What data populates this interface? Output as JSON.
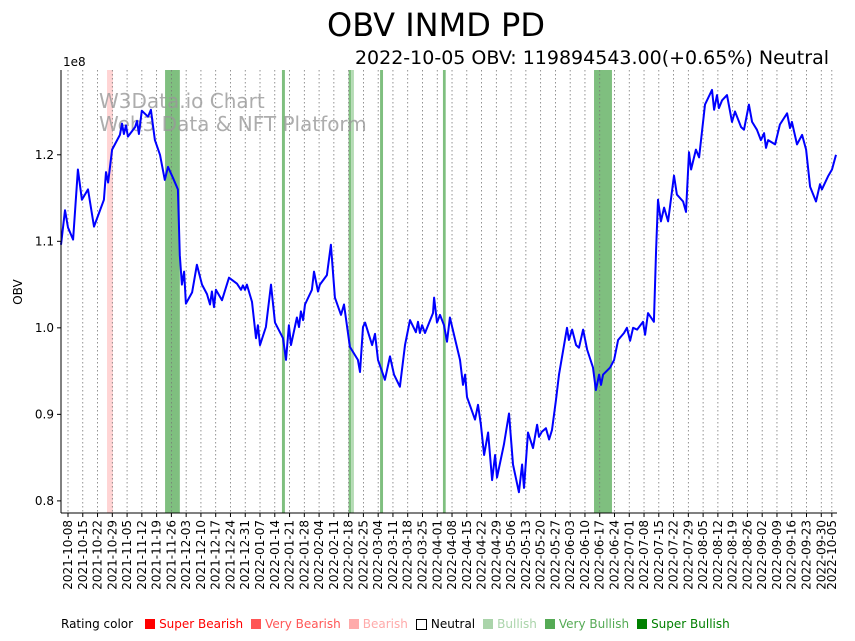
{
  "chart_data": {
    "type": "line",
    "title": "OBV INMD PD",
    "subtitle": "2022-10-05 OBV: 119894543.00(+0.65%) Neutral",
    "ylabel": "OBV",
    "xlabel": "",
    "y_scale_label": "1e8",
    "ylim": [
      0.786,
      1.298
    ],
    "y_ticks": [
      "0.8",
      "0.9",
      "1.0",
      "1.1",
      "1.2"
    ],
    "y_tick_values": [
      0.8,
      0.9,
      1.0,
      1.1,
      1.2
    ],
    "x_start_date": "2021-10-08",
    "x_ticks": [
      "2021-10-08",
      "2021-10-15",
      "2021-10-22",
      "2021-10-29",
      "2021-11-05",
      "2021-11-12",
      "2021-11-19",
      "2021-11-26",
      "2021-12-03",
      "2021-12-10",
      "2021-12-17",
      "2021-12-24",
      "2021-12-31",
      "2022-01-07",
      "2022-01-14",
      "2022-01-21",
      "2022-01-28",
      "2022-02-04",
      "2022-02-11",
      "2022-02-18",
      "2022-02-25",
      "2022-03-04",
      "2022-03-11",
      "2022-03-18",
      "2022-03-25",
      "2022-04-01",
      "2022-04-08",
      "2022-04-15",
      "2022-04-22",
      "2022-04-29",
      "2022-05-06",
      "2022-05-13",
      "2022-05-20",
      "2022-05-27",
      "2022-06-03",
      "2022-06-10",
      "2022-06-17",
      "2022-06-24",
      "2022-07-01",
      "2022-07-08",
      "2022-07-15",
      "2022-07-22",
      "2022-07-29",
      "2022-08-05",
      "2022-08-12",
      "2022-08-19",
      "2022-08-26",
      "2022-09-02",
      "2022-09-09",
      "2022-09-16",
      "2022-09-23",
      "2022-09-30",
      "2022-10-05"
    ],
    "x_tick_days": [
      0,
      7,
      14,
      21,
      28,
      35,
      42,
      49,
      56,
      63,
      70,
      77,
      84,
      91,
      98,
      105,
      112,
      119,
      126,
      133,
      140,
      147,
      154,
      161,
      168,
      175,
      182,
      189,
      196,
      203,
      210,
      217,
      224,
      231,
      238,
      245,
      252,
      259,
      266,
      273,
      280,
      287,
      294,
      301,
      308,
      315,
      322,
      329,
      336,
      343,
      350,
      357,
      362
    ],
    "grid": "vertical dotted",
    "series": [
      {
        "name": "OBV",
        "color": "#0000ff",
        "points": [
          [
            -3.3,
            1.096
          ],
          [
            -1.4,
            1.136
          ],
          [
            0,
            1.116
          ],
          [
            2.4,
            1.102
          ],
          [
            4.7,
            1.183
          ],
          [
            6.6,
            1.148
          ],
          [
            9.5,
            1.16
          ],
          [
            12.3,
            1.117
          ],
          [
            17,
            1.148
          ],
          [
            18,
            1.18
          ],
          [
            19,
            1.168
          ],
          [
            20.9,
            1.206
          ],
          [
            24.6,
            1.223
          ],
          [
            25.6,
            1.236
          ],
          [
            26.5,
            1.224
          ],
          [
            27.5,
            1.234
          ],
          [
            28.4,
            1.221
          ],
          [
            31.8,
            1.232
          ],
          [
            32.7,
            1.239
          ],
          [
            33.6,
            1.224
          ],
          [
            35,
            1.251
          ],
          [
            37.9,
            1.244
          ],
          [
            39.3,
            1.252
          ],
          [
            41.2,
            1.217
          ],
          [
            43.6,
            1.2
          ],
          [
            45.9,
            1.171
          ],
          [
            47.4,
            1.186
          ],
          [
            49.8,
            1.173
          ],
          [
            52.1,
            1.16
          ],
          [
            53,
            1.084
          ],
          [
            54,
            1.05
          ],
          [
            55,
            1.065
          ],
          [
            55.9,
            1.028
          ],
          [
            58.8,
            1.041
          ],
          [
            61.1,
            1.073
          ],
          [
            63.5,
            1.05
          ],
          [
            65.9,
            1.039
          ],
          [
            67.3,
            1.027
          ],
          [
            68.2,
            1.042
          ],
          [
            69.2,
            1.024
          ],
          [
            70.1,
            1.044
          ],
          [
            73,
            1.032
          ],
          [
            76.3,
            1.058
          ],
          [
            80.1,
            1.051
          ],
          [
            82,
            1.044
          ],
          [
            82.9,
            1.049
          ],
          [
            83.9,
            1.044
          ],
          [
            84.8,
            1.05
          ],
          [
            87.2,
            1.03
          ],
          [
            89.1,
            0.988
          ],
          [
            90,
            1.003
          ],
          [
            91,
            0.98
          ],
          [
            93.8,
            1.001
          ],
          [
            96.2,
            1.05
          ],
          [
            98.1,
            1.006
          ],
          [
            101.9,
            0.988
          ],
          [
            103.3,
            0.963
          ],
          [
            104.7,
            1.003
          ],
          [
            105.7,
            0.98
          ],
          [
            108.5,
            1.012
          ],
          [
            109.5,
            1.001
          ],
          [
            110.4,
            1.019
          ],
          [
            111.4,
            1.009
          ],
          [
            112.3,
            1.027
          ],
          [
            115.6,
            1.044
          ],
          [
            116.6,
            1.065
          ],
          [
            118.5,
            1.042
          ],
          [
            119.4,
            1.05
          ],
          [
            122.7,
            1.061
          ],
          [
            124.6,
            1.096
          ],
          [
            126.5,
            1.035
          ],
          [
            129.4,
            1.015
          ],
          [
            130.8,
            1.027
          ],
          [
            133.6,
            0.978
          ],
          [
            137.4,
            0.963
          ],
          [
            138.4,
            0.949
          ],
          [
            139.8,
            1.001
          ],
          [
            140.8,
            1.006
          ],
          [
            144.1,
            0.98
          ],
          [
            145.5,
            0.993
          ],
          [
            146.9,
            0.963
          ],
          [
            150.2,
            0.94
          ],
          [
            152.6,
            0.967
          ],
          [
            154.5,
            0.946
          ],
          [
            157.3,
            0.932
          ],
          [
            159.7,
            0.98
          ],
          [
            162.1,
            1.009
          ],
          [
            164.9,
            0.995
          ],
          [
            165.9,
            1.007
          ],
          [
            166.8,
            0.994
          ],
          [
            167.8,
            1.003
          ],
          [
            169.2,
            0.994
          ],
          [
            173,
            1.017
          ],
          [
            173.5,
            1.035
          ],
          [
            174.9,
            1.006
          ],
          [
            176.3,
            1.015
          ],
          [
            178.2,
            1.003
          ],
          [
            179.6,
            0.984
          ],
          [
            181,
            1.012
          ],
          [
            185.8,
            0.963
          ],
          [
            187.2,
            0.934
          ],
          [
            188.2,
            0.946
          ],
          [
            189.1,
            0.92
          ],
          [
            192.9,
            0.894
          ],
          [
            194.3,
            0.911
          ],
          [
            195.7,
            0.888
          ],
          [
            197.2,
            0.853
          ],
          [
            199.1,
            0.879
          ],
          [
            201,
            0.824
          ],
          [
            202.4,
            0.853
          ],
          [
            203.3,
            0.827
          ],
          [
            206.6,
            0.865
          ],
          [
            209,
            0.901
          ],
          [
            210.9,
            0.842
          ],
          [
            213.7,
            0.81
          ],
          [
            215.2,
            0.842
          ],
          [
            216.1,
            0.815
          ],
          [
            218,
            0.879
          ],
          [
            220.4,
            0.861
          ],
          [
            222.3,
            0.888
          ],
          [
            223.2,
            0.874
          ],
          [
            224.6,
            0.88
          ],
          [
            226.5,
            0.884
          ],
          [
            228,
            0.871
          ],
          [
            229.4,
            0.882
          ],
          [
            231.3,
            0.917
          ],
          [
            232.7,
            0.946
          ],
          [
            236.5,
            1.0
          ],
          [
            237.4,
            0.986
          ],
          [
            238.9,
            0.998
          ],
          [
            240.8,
            0.98
          ],
          [
            242.2,
            0.977
          ],
          [
            244.1,
            0.998
          ],
          [
            246,
            0.975
          ],
          [
            248.8,
            0.954
          ],
          [
            250.2,
            0.928
          ],
          [
            251.7,
            0.946
          ],
          [
            252.6,
            0.934
          ],
          [
            253.6,
            0.946
          ],
          [
            256.9,
            0.954
          ],
          [
            258.8,
            0.963
          ],
          [
            260.7,
            0.986
          ],
          [
            263.5,
            0.994
          ],
          [
            264.9,
            1.0
          ],
          [
            266.4,
            0.985
          ],
          [
            267.8,
            1.0
          ],
          [
            269.7,
            0.998
          ],
          [
            272.5,
            1.007
          ],
          [
            273.5,
            0.992
          ],
          [
            274.9,
            1.017
          ],
          [
            277.7,
            1.007
          ],
          [
            278.7,
            1.09
          ],
          [
            279.6,
            1.148
          ],
          [
            281,
            1.123
          ],
          [
            282.5,
            1.139
          ],
          [
            284.4,
            1.123
          ],
          [
            287.2,
            1.176
          ],
          [
            288.6,
            1.154
          ],
          [
            291.5,
            1.146
          ],
          [
            292.9,
            1.134
          ],
          [
            294.3,
            1.203
          ],
          [
            295.3,
            1.183
          ],
          [
            297.6,
            1.206
          ],
          [
            299.1,
            1.197
          ],
          [
            301.9,
            1.258
          ],
          [
            305.2,
            1.275
          ],
          [
            306.2,
            1.252
          ],
          [
            307.6,
            1.269
          ],
          [
            308.5,
            1.254
          ],
          [
            310,
            1.263
          ],
          [
            312.3,
            1.269
          ],
          [
            314.7,
            1.238
          ],
          [
            316.1,
            1.25
          ],
          [
            319,
            1.232
          ],
          [
            320.4,
            1.229
          ],
          [
            322.7,
            1.258
          ],
          [
            324.2,
            1.238
          ],
          [
            326.5,
            1.229
          ],
          [
            328.4,
            1.217
          ],
          [
            329.9,
            1.225
          ],
          [
            330.8,
            1.208
          ],
          [
            331.8,
            1.217
          ],
          [
            335.1,
            1.212
          ],
          [
            337.4,
            1.235
          ],
          [
            340.8,
            1.248
          ],
          [
            342.2,
            1.231
          ],
          [
            343.1,
            1.238
          ],
          [
            345.5,
            1.212
          ],
          [
            347.9,
            1.223
          ],
          [
            349.8,
            1.206
          ],
          [
            351.7,
            1.163
          ],
          [
            354.5,
            1.146
          ],
          [
            356.4,
            1.166
          ],
          [
            357.3,
            1.16
          ],
          [
            360.2,
            1.175
          ],
          [
            362.1,
            1.183
          ],
          [
            364,
            1.2
          ]
        ]
      }
    ],
    "rating_bands": [
      {
        "rating": "Bearish",
        "from_day": 18.5,
        "to_day": 21.3
      },
      {
        "rating": "Very Bullish",
        "from_day": 46,
        "to_day": 53
      },
      {
        "rating": "Very Bullish",
        "from_day": 101.4,
        "to_day": 102.8
      },
      {
        "rating": "Very Bullish",
        "from_day": 133,
        "to_day": 134.2
      },
      {
        "rating": "Bullish",
        "from_day": 134.2,
        "to_day": 135.5
      },
      {
        "rating": "Very Bullish",
        "from_day": 147.9,
        "to_day": 149.3
      },
      {
        "rating": "Very Bullish",
        "from_day": 177.7,
        "to_day": 179
      },
      {
        "rating": "Very Bullish",
        "from_day": 249.3,
        "to_day": 257.8
      }
    ],
    "band_colors": {
      "Super Bearish": "#ffaaaa",
      "Very Bearish": "#ffc8c8",
      "Bearish": "#ffd4d4",
      "Bullish": "#b3dbb3",
      "Very Bullish": "#7fbf7f",
      "Super Bullish": "#3f9f3f"
    },
    "watermark": [
      "W3Data.io Chart",
      "Web3 Data & NFT Platform"
    ],
    "legend": {
      "label": "Rating color",
      "items": [
        {
          "name": "Super Bearish",
          "color": "#ff0000",
          "text_color": "#ff0000"
        },
        {
          "name": "Very Bearish",
          "color": "#ff5555",
          "text_color": "#ff5555"
        },
        {
          "name": "Bearish",
          "color": "#ffaaaa",
          "text_color": "#ffaaaa"
        },
        {
          "name": "Neutral",
          "color": "none",
          "text_color": "#000000"
        },
        {
          "name": "Bullish",
          "color": "#aad4aa",
          "text_color": "#aad4aa"
        },
        {
          "name": "Very Bullish",
          "color": "#55aa55",
          "text_color": "#55aa55"
        },
        {
          "name": "Super Bullish",
          "color": "#008000",
          "text_color": "#008000"
        }
      ]
    }
  }
}
